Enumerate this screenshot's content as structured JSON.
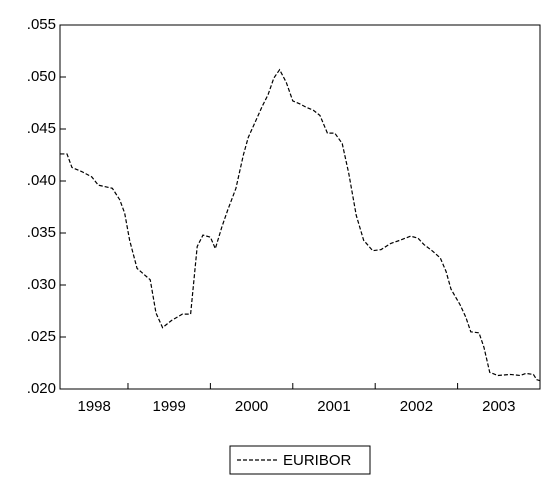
{
  "chart_data": {
    "type": "line",
    "x": [
      1998.18,
      1998.26,
      1998.32,
      1998.44,
      1998.56,
      1998.64,
      1998.81,
      1998.9,
      1998.96,
      1999.02,
      1999.11,
      1999.27,
      1999.34,
      1999.42,
      1999.53,
      1999.66,
      1999.76,
      1999.84,
      1999.91,
      2000.0,
      2000.06,
      2000.14,
      2000.21,
      2000.31,
      2000.4,
      2000.46,
      2000.54,
      2000.63,
      2000.7,
      2000.77,
      2000.84,
      2000.92,
      2001.0,
      2001.09,
      2001.16,
      2001.25,
      2001.33,
      2001.42,
      2001.51,
      2001.6,
      2001.68,
      2001.77,
      2001.86,
      2001.97,
      2002.07,
      2002.19,
      2002.3,
      2002.43,
      2002.52,
      2002.59,
      2002.69,
      2002.79,
      2002.86,
      2002.92,
      2003.03,
      2003.1,
      2003.16,
      2003.26,
      2003.32,
      2003.39,
      2003.49,
      2003.64,
      2003.76,
      2003.83,
      2003.92,
      2003.96,
      2004.0
    ],
    "series": [
      {
        "name": "EURIBOR",
        "color": "#000000",
        "values": [
          0.0426,
          0.0426,
          0.0413,
          0.0409,
          0.0404,
          0.0396,
          0.0393,
          0.0382,
          0.0369,
          0.0343,
          0.0316,
          0.0305,
          0.0273,
          0.0259,
          0.0266,
          0.0272,
          0.0272,
          0.0337,
          0.0348,
          0.0346,
          0.0335,
          0.0356,
          0.0372,
          0.0393,
          0.0425,
          0.0442,
          0.0456,
          0.0472,
          0.0483,
          0.0499,
          0.0507,
          0.0495,
          0.0477,
          0.0474,
          0.0471,
          0.0468,
          0.0463,
          0.0446,
          0.0446,
          0.0436,
          0.0407,
          0.0367,
          0.0343,
          0.0333,
          0.0334,
          0.034,
          0.0343,
          0.0347,
          0.0345,
          0.0339,
          0.0333,
          0.0326,
          0.0313,
          0.0296,
          0.0281,
          0.0269,
          0.0255,
          0.0254,
          0.024,
          0.0216,
          0.0213,
          0.0214,
          0.0213,
          0.0215,
          0.0214,
          0.0209,
          0.0208
        ]
      }
    ],
    "xlim": [
      1998.175,
      2004
    ],
    "xticks": [
      {
        "value": 1998.59,
        "label": "1998"
      },
      {
        "value": 1999.5,
        "label": "1999"
      },
      {
        "value": 2000.5,
        "label": "2000"
      },
      {
        "value": 2001.5,
        "label": "2001"
      },
      {
        "value": 2002.5,
        "label": "2002"
      },
      {
        "value": 2003.5,
        "label": "2003"
      }
    ],
    "xtick_marks": [
      1999,
      2000,
      2001,
      2002,
      2003
    ],
    "ylim": [
      0.02,
      0.055
    ],
    "yticks": [
      {
        "value": 0.02,
        "label": ".020"
      },
      {
        "value": 0.025,
        "label": ".025"
      },
      {
        "value": 0.03,
        "label": ".030"
      },
      {
        "value": 0.035,
        "label": ".035"
      },
      {
        "value": 0.04,
        "label": ".040"
      },
      {
        "value": 0.045,
        "label": ".045"
      },
      {
        "value": 0.05,
        "label": ".050"
      },
      {
        "value": 0.055,
        "label": ".055"
      }
    ],
    "legend": "bottom"
  }
}
